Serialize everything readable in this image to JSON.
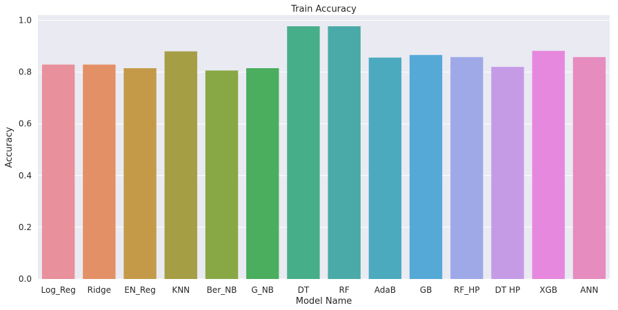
{
  "chart_data": {
    "type": "bar",
    "title": "Train Accuracy",
    "xlabel": "Model Name",
    "ylabel": "Accuracy",
    "categories": [
      "Log_Reg",
      "Ridge",
      "EN_Reg",
      "KNN",
      "Ber_NB",
      "G_NB",
      "DT",
      "RF",
      "AdaB",
      "GB",
      "RF_HP",
      "DT HP",
      "XGB",
      "ANN"
    ],
    "values": [
      0.829,
      0.829,
      0.815,
      0.88,
      0.806,
      0.815,
      0.977,
      0.977,
      0.856,
      0.866,
      0.858,
      0.82,
      0.882,
      0.858
    ],
    "colors": [
      "#e8909b",
      "#e49066",
      "#c49a48",
      "#a59e45",
      "#88a845",
      "#4aae5e",
      "#47ae8a",
      "#49aaa7",
      "#4caabe",
      "#54a9d6",
      "#9fa9e8",
      "#c59be6",
      "#e688de",
      "#e68cbe"
    ],
    "yticks": [
      "0.0",
      "0.2",
      "0.4",
      "0.6",
      "0.8",
      "1.0"
    ],
    "ylim": [
      0,
      1.02
    ],
    "grid": true,
    "background": "#eaeaf2"
  }
}
